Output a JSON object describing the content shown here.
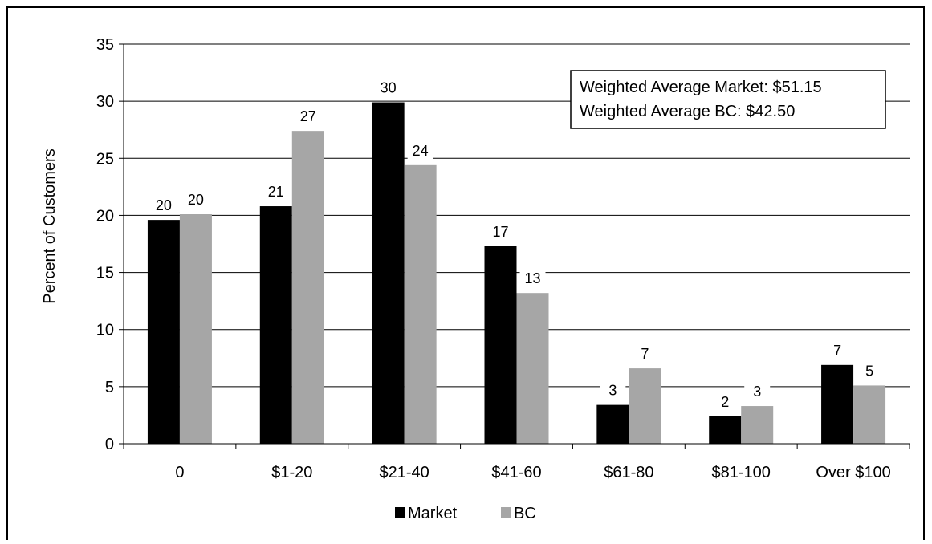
{
  "chart_data": {
    "type": "bar",
    "categories": [
      "0",
      "$1-20",
      "$21-40",
      "$41-60",
      "$61-80",
      "$81-100",
      "Over $100"
    ],
    "series": [
      {
        "name": "Market",
        "color": "#000000",
        "values": [
          19.6,
          20.8,
          29.9,
          17.3,
          3.4,
          2.4,
          6.9
        ],
        "labels": [
          "20",
          "21",
          "30",
          "17",
          "3",
          "2",
          "7"
        ]
      },
      {
        "name": "BC",
        "color": "#a6a6a6",
        "values": [
          20.1,
          27.4,
          24.4,
          13.2,
          6.6,
          3.3,
          5.1
        ],
        "labels": [
          "20",
          "27",
          "24",
          "13",
          "7",
          "3",
          "5"
        ]
      }
    ],
    "ylabel": "Percent of Customers",
    "xlabel": "",
    "ylim": [
      0,
      35
    ],
    "yticks": [
      "0",
      "5",
      "10",
      "15",
      "20",
      "25",
      "30",
      "35"
    ],
    "grid": true,
    "legend_position": "bottom-center",
    "annotation": {
      "line1": "Weighted Average Market: $51.15",
      "line2": "Weighted Average BC: $42.50"
    }
  }
}
